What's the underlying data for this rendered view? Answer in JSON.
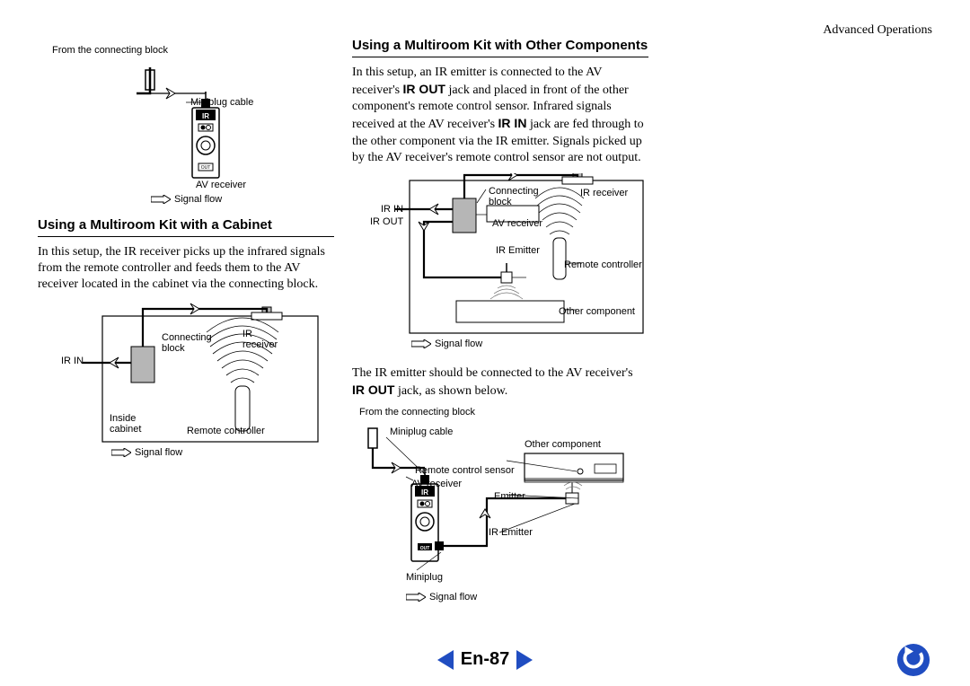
{
  "page": {
    "header_right": "Advanced Operations",
    "page_number": "En-87"
  },
  "colors": {
    "accent_blue": "#204dc1",
    "text": "#000000",
    "bg": "#ffffff",
    "diagram_gray": "#b6b6b6",
    "diagram_darkgray": "#6f6f6f"
  },
  "typography": {
    "body_font": "Times New Roman",
    "ui_font": "Arial",
    "body_size_pt": 11,
    "title_size_pt": 12,
    "label_size_pt": 8
  },
  "left": {
    "fig1": {
      "from_connecting_block": "From the connecting block",
      "miniplug_cable": "Miniplug cable",
      "ir": "IR",
      "av_receiver": "AV receiver",
      "signal_flow": "Signal flow"
    },
    "section_title": "Using a Multiroom Kit with a Cabinet",
    "para1": "In this setup, the IR receiver picks up the infrared signals from the remote controller and feeds them to the AV receiver located in the cabinet via the connecting block.",
    "fig2": {
      "ir_in": "IR IN",
      "connecting_block": "Connecting block",
      "ir_receiver": "IR receiver",
      "inside_cabinet": "Inside cabinet",
      "remote_controller": "Remote controller",
      "signal_flow": "Signal flow"
    }
  },
  "right": {
    "section_title": "Using a Multiroom Kit with Other Components",
    "para1_html": "In this setup, an IR emitter is connected to the AV receiver's <b>IR OUT</b> jack and placed in front of the other component's remote control sensor. Infrared signals received at the AV receiver's <b>IR IN</b> jack are fed through to the other component via the IR emitter. Signals picked up by the AV receiver's remote control sensor are not output.",
    "fig3": {
      "ir_in": "IR IN",
      "ir_out": "IR OUT",
      "connecting_block": "Connecting block",
      "ir_receiver": "IR receiver",
      "av_receiver": "AV receiver",
      "ir_emitter": "IR Emitter",
      "remote_controller": "Remote controller",
      "other_component": "Other component",
      "signal_flow": "Signal flow"
    },
    "para2_html": "The IR emitter should be connected to the AV receiver's <b>IR OUT</b> jack, as shown below.",
    "fig4": {
      "from_connecting_block": "From the connecting block",
      "miniplug_cable": "Miniplug cable",
      "other_component": "Other component",
      "remote_control_sensor": "Remote control sensor",
      "av_receiver": "AV receiver",
      "emitter": "Emitter",
      "ir": "IR",
      "ir_emitter": "IR Emitter",
      "out": "OUT",
      "miniplug": "Miniplug",
      "signal_flow": "Signal flow"
    }
  }
}
